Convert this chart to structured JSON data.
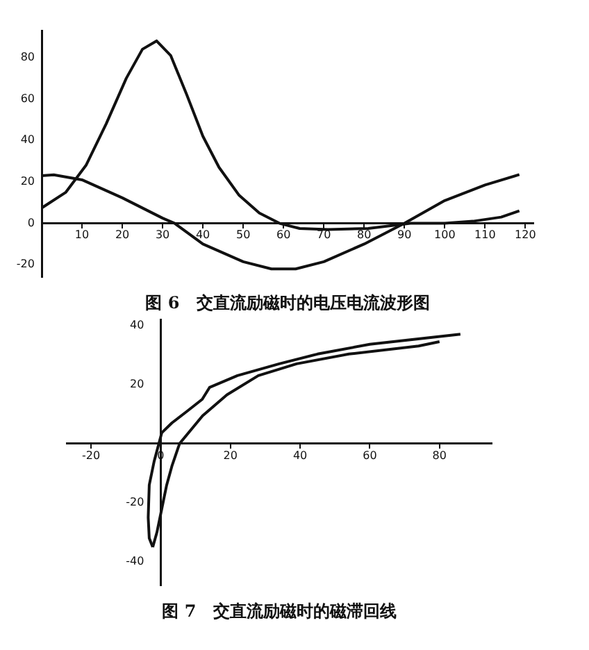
{
  "chart_data": [
    {
      "type": "line",
      "title": "图 6　交直流励磁时的电压电流波形图",
      "xlim": [
        0,
        122
      ],
      "ylim": [
        -26,
        93
      ],
      "xticks": [
        {
          "value": 0,
          "label": null
        },
        10,
        20,
        30,
        40,
        50,
        60,
        70,
        80,
        90,
        100,
        110,
        120
      ],
      "yticks": [
        -20,
        0,
        20,
        40,
        60,
        80
      ],
      "grid": false,
      "legend": false,
      "marker": "none",
      "series": [
        {
          "color": "#111111",
          "x": [
            0,
            6,
            11,
            16,
            21,
            25,
            28.5,
            32,
            36,
            40,
            44,
            49,
            54,
            59,
            64,
            71,
            81,
            91.5,
            100,
            107,
            114,
            118.5
          ],
          "values": [
            7.4,
            15,
            28,
            48,
            70,
            84,
            88,
            81,
            62,
            42,
            27,
            13.5,
            5,
            0,
            -2.5,
            -3,
            -2.5,
            0,
            0,
            1,
            3,
            6
          ]
        },
        {
          "color": "#111111",
          "x": [
            0,
            3,
            10,
            20,
            30,
            33,
            40,
            50,
            57,
            63,
            70,
            80,
            90,
            100,
            110,
            118.5
          ],
          "values": [
            23,
            23.4,
            21,
            12.3,
            2.5,
            0,
            -10,
            -18.5,
            -22,
            -22,
            -18.5,
            -10,
            0,
            11,
            18.5,
            23.5
          ]
        }
      ]
    },
    {
      "type": "line",
      "title": "图 7　交直流励磁时的磁滞回线",
      "xlim": [
        -27,
        95
      ],
      "ylim": [
        -48,
        42
      ],
      "xticks": [
        -20,
        0,
        20,
        40,
        60,
        80
      ],
      "yticks": [
        -40,
        -20,
        20,
        40
      ],
      "grid": false,
      "legend": false,
      "marker": "none",
      "series": [
        {
          "color": "#111111",
          "x": [
            -2.3,
            -3.3,
            -3.6,
            -3.3,
            -1.9,
            0.3,
            3.2,
            7.6,
            11.9,
            14,
            22,
            34,
            45,
            60,
            86
          ],
          "values": [
            -35,
            -32,
            -25,
            -14,
            -6,
            3.7,
            7,
            11,
            15,
            19,
            23,
            27,
            30.3,
            33.6,
            37
          ]
        },
        {
          "color": "#111111",
          "x": [
            -2.3,
            -1.1,
            0.3,
            1.7,
            3.2,
            5.4,
            12,
            19,
            28,
            39,
            54,
            74,
            80
          ],
          "values": [
            -35,
            -30,
            -22,
            -14,
            -7.6,
            0,
            9.4,
            16.5,
            23,
            27,
            30.3,
            33,
            34.5
          ]
        }
      ]
    }
  ]
}
